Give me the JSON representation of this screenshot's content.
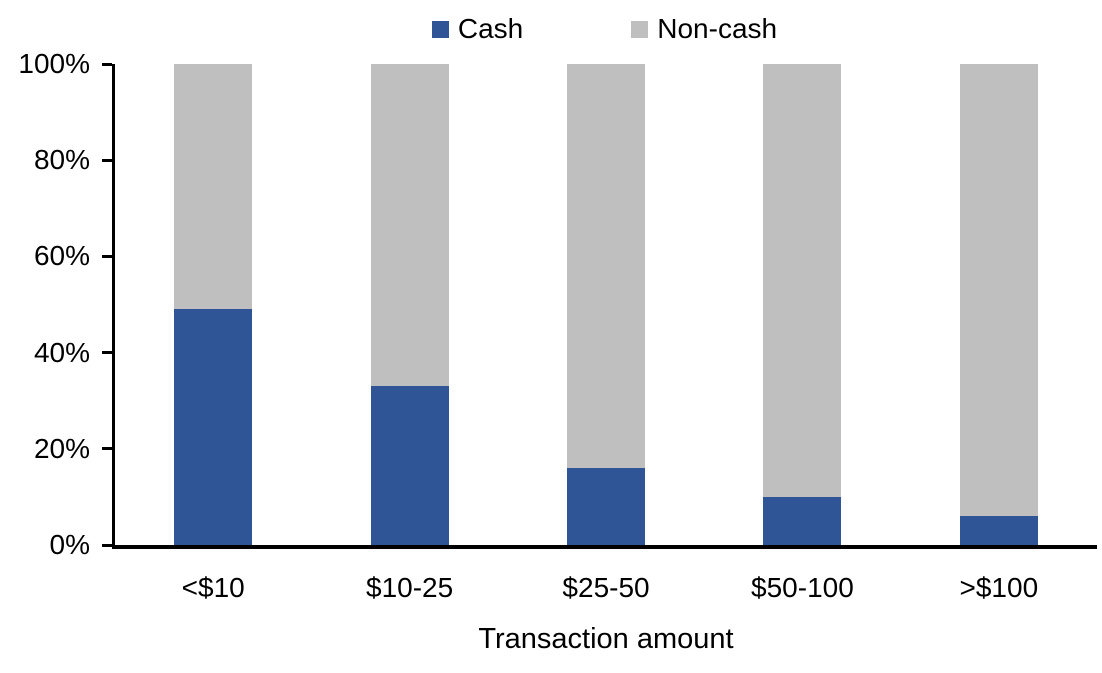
{
  "chart_data": {
    "type": "bar",
    "stacked": true,
    "orientation": "vertical",
    "title": "",
    "xlabel": "Transaction amount",
    "ylabel": "",
    "categories": [
      "<$10",
      "$10-25",
      "$25-50",
      "$50-100",
      ">$100"
    ],
    "series": [
      {
        "name": "Cash",
        "color": "#2F5597",
        "values": [
          49,
          33,
          16,
          10,
          6
        ]
      },
      {
        "name": "Non-cash",
        "color": "#BFBFBF",
        "values": [
          51,
          67,
          84,
          90,
          94
        ]
      }
    ],
    "ylim": [
      0,
      100
    ],
    "ytick_labels": [
      "0%",
      "20%",
      "40%",
      "60%",
      "80%",
      "100%"
    ],
    "ytick_values": [
      0,
      20,
      40,
      60,
      80,
      100
    ],
    "grid": false,
    "legend_position": "top-center",
    "background_color": "#FFFFFF",
    "axis_color": "#000000",
    "text_color": "#000000"
  }
}
